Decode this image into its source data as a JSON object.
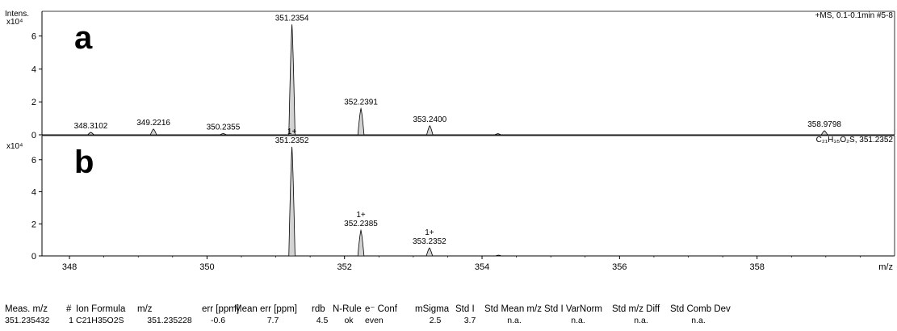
{
  "chart_data": [
    {
      "type": "line",
      "panel_label": "a",
      "y_axis_label": "Intens.",
      "y_scale_label": "x10⁴",
      "header_text": "+MS, 0.1-0.1min #5-8",
      "x_unit_label": "m/z",
      "xlim": [
        347.6,
        360.0
      ],
      "ylim": [
        0,
        7.5
      ],
      "x_ticks": [
        348,
        350,
        352,
        354,
        356,
        358
      ],
      "y_ticks": [
        0,
        2,
        4,
        6
      ],
      "peaks": [
        {
          "x": 348.3102,
          "y": 0.15,
          "label": "348.3102"
        },
        {
          "x": 349.2216,
          "y": 0.35,
          "label": "349.2216"
        },
        {
          "x": 350.2355,
          "y": 0.08,
          "label": "350.2355"
        },
        {
          "x": 351.2354,
          "y": 6.7,
          "label": "351.2354"
        },
        {
          "x": 352.2391,
          "y": 1.6,
          "label": "352.2391"
        },
        {
          "x": 353.24,
          "y": 0.55,
          "label": "353.2400"
        },
        {
          "x": 354.23,
          "y": 0.07,
          "label": ""
        },
        {
          "x": 358.9798,
          "y": 0.25,
          "label": "358.9798"
        }
      ]
    },
    {
      "type": "line",
      "panel_label": "b",
      "y_scale_label": "x10⁴",
      "header_text": "C₂₁H₃₅O₂S, 351.2352",
      "x_unit_label": "m/z",
      "xlim": [
        347.6,
        360.0
      ],
      "ylim": [
        0,
        7.5
      ],
      "x_ticks": [
        348,
        350,
        352,
        354,
        356,
        358
      ],
      "y_ticks": [
        0,
        2,
        4,
        6
      ],
      "peaks": [
        {
          "x": 351.2352,
          "y": 6.8,
          "label": "351.2352",
          "charge": "1+"
        },
        {
          "x": 352.2385,
          "y": 1.6,
          "label": "352.2385",
          "charge": "1+"
        },
        {
          "x": 353.2352,
          "y": 0.5,
          "label": "353.2352",
          "charge": "1+"
        },
        {
          "x": 354.24,
          "y": 0.05,
          "label": "",
          "charge": ""
        }
      ]
    }
  ],
  "results_table": {
    "headers": [
      "Meas. m/z",
      "#",
      "Ion Formula",
      "m/z",
      "err [ppm]",
      "Mean err [ppm]",
      "rdb",
      "N-Rule",
      "e⁻ Conf",
      "mSigma",
      "Std I",
      "Std Mean m/z",
      "Std I VarNorm",
      "Std m/z Diff",
      "Std Comb Dev"
    ],
    "rows": [
      [
        "351.235432",
        "1",
        "C21H35O2S",
        "351.235228",
        "-0.6",
        "7.7",
        "4.5",
        "ok",
        "even",
        "2.5",
        "3.7",
        "n.a.",
        "n.a.",
        "n.a.",
        "n.a."
      ]
    ]
  }
}
